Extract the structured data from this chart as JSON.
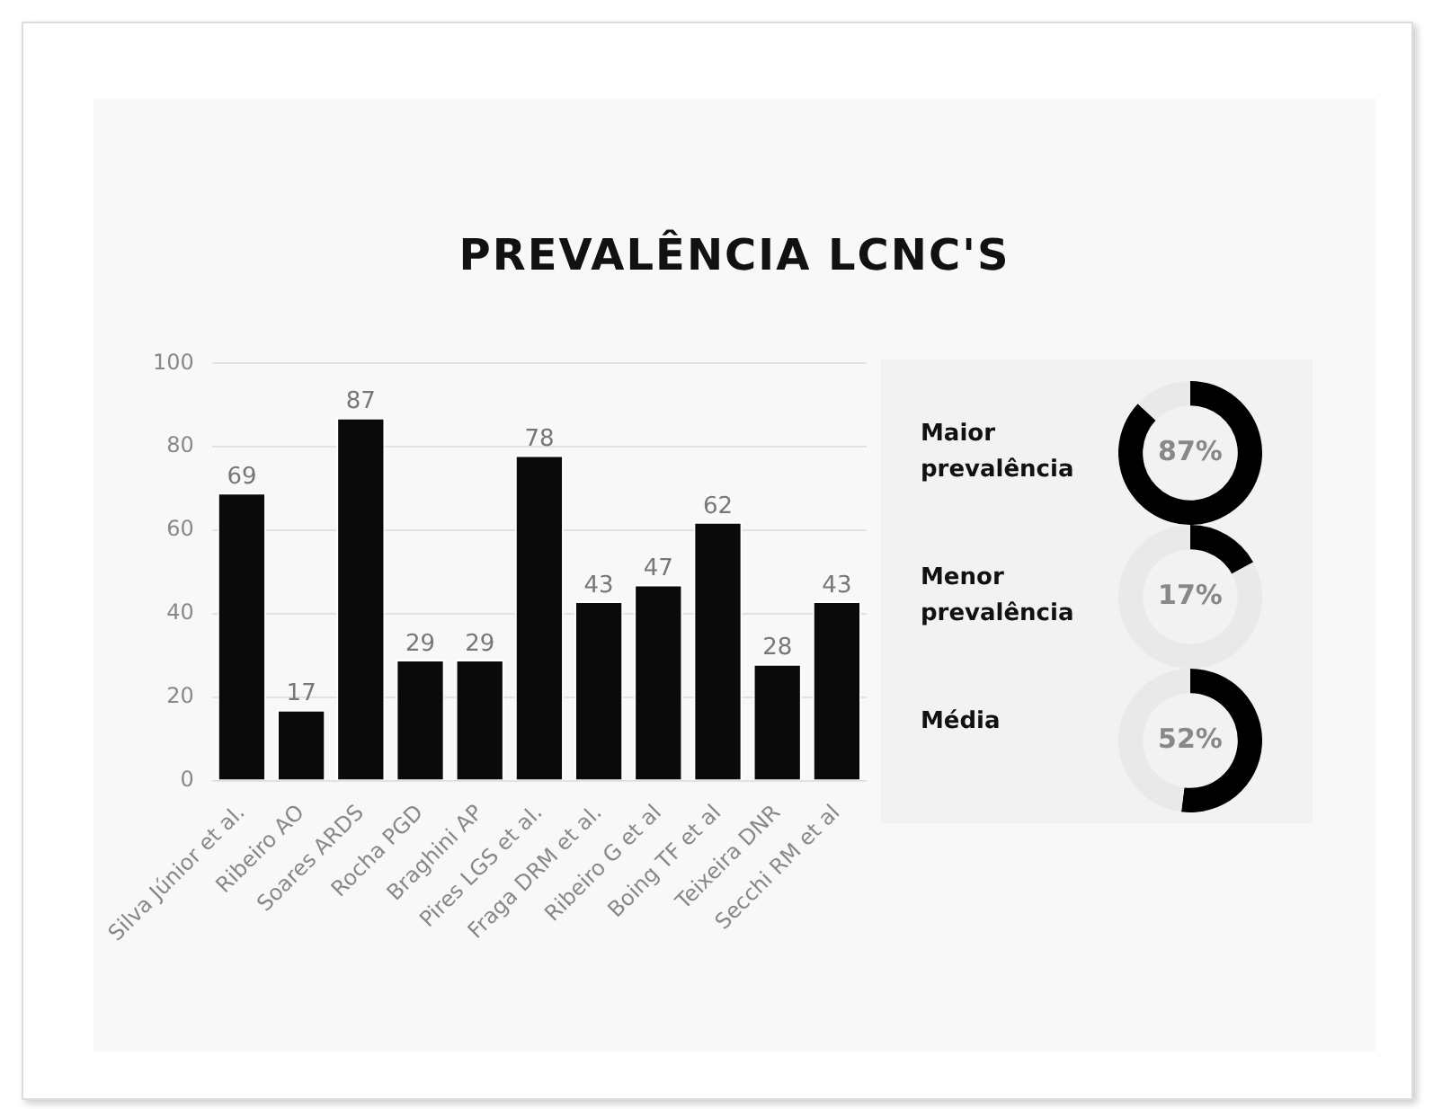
{
  "chart_data": [
    {
      "type": "bar",
      "title": "PREVALÊNCIA LCNC'S",
      "categories": [
        "Silva Júnior et al.",
        "Ribeiro AO",
        "Soares ARDS",
        "Rocha PGD",
        "Braghini AP",
        "Pires LGS et al.",
        "Fraga DRM et al.",
        "Ribeiro G et al",
        "Boing TF et al",
        "Teixeira DNR",
        "Secchi RM et al"
      ],
      "values": [
        69,
        17,
        87,
        29,
        29,
        78,
        43,
        47,
        62,
        28,
        43
      ],
      "color": "#0a0a0a",
      "ylim": [
        0,
        100
      ],
      "yticks": [
        0,
        20,
        40,
        60,
        80,
        100
      ],
      "grid": "y",
      "data_labels": true,
      "legend": false
    },
    {
      "type": "donut",
      "title": "Maior prevalência",
      "categories": [
        null,
        null
      ],
      "values": [
        87,
        13
      ],
      "colors": [
        "#000000",
        "#e9e9e9"
      ],
      "value_labels": [
        "87%",
        null
      ]
    },
    {
      "type": "donut",
      "title": "Menor prevalência",
      "categories": [
        null,
        null
      ],
      "values": [
        17,
        83
      ],
      "colors": [
        "#000000",
        "#e9e9e9"
      ],
      "value_labels": [
        "17%",
        null
      ]
    },
    {
      "type": "donut",
      "title": "Média",
      "categories": [
        null,
        null
      ],
      "values": [
        52,
        48
      ],
      "colors": [
        "#000000",
        "#e9e9e9"
      ],
      "value_labels": [
        "52%",
        null
      ]
    }
  ]
}
